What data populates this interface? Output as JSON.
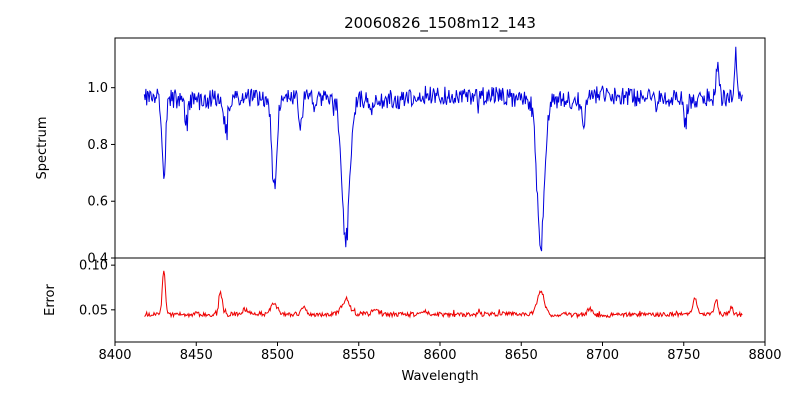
{
  "chart_data": {
    "type": "line",
    "title": "20060826_1508m12_143",
    "xlabel": "Wavelength",
    "xlim": [
      8400,
      8800
    ],
    "x_data_range": [
      8418,
      8786
    ],
    "point_step": 0.5,
    "x_tick_values": [
      8400,
      8450,
      8500,
      8550,
      8600,
      8650,
      8700,
      8750,
      8800
    ],
    "x_tick_labels": [
      "8400",
      "8450",
      "8500",
      "8550",
      "8600",
      "8650",
      "8700",
      "8750",
      "8800"
    ],
    "grid": false,
    "legend": "none",
    "subplots": [
      {
        "name": "spectrum",
        "ylabel": "Spectrum",
        "ylim": [
          0.4,
          1.175
        ],
        "ytick_values": [
          0.4,
          0.6,
          0.8,
          1.0
        ],
        "ytick_labels": [
          "0.4",
          "0.6",
          "0.8",
          "1.0"
        ],
        "line_color": "#0000dd",
        "baseline": 0.965,
        "noise_amp": 0.033,
        "absorption_lines": [
          {
            "center": 8430,
            "depth": 0.3,
            "width": 1.1
          },
          {
            "center": 8444,
            "depth": 0.08,
            "width": 1.0
          },
          {
            "center": 8468,
            "depth": 0.1,
            "width": 1.2
          },
          {
            "center": 8498,
            "depth": 0.33,
            "width": 1.6
          },
          {
            "center": 8514,
            "depth": 0.1,
            "width": 1.0
          },
          {
            "center": 8542,
            "depth": 0.52,
            "width": 2.4
          },
          {
            "center": 8662,
            "depth": 0.53,
            "width": 2.4
          },
          {
            "center": 8688,
            "depth": 0.1,
            "width": 1.2
          },
          {
            "center": 8751,
            "depth": 0.09,
            "width": 1.0
          }
        ],
        "emission_spikes": [
          {
            "center": 8771,
            "height": 0.15,
            "width": 0.8
          },
          {
            "center": 8782,
            "height": 0.17,
            "width": 0.8
          }
        ]
      },
      {
        "name": "error",
        "ylabel": "Error",
        "ylim": [
          0.014,
          0.108
        ],
        "ytick_values": [
          0.05,
          0.1
        ],
        "ytick_labels": [
          "0.05",
          "0.10"
        ],
        "line_color": "#ee0000",
        "baseline": 0.045,
        "noise_amp": 0.0025,
        "peaks": [
          {
            "center": 8430,
            "height": 0.056,
            "width": 0.9
          },
          {
            "center": 8465,
            "height": 0.027,
            "width": 1.0
          },
          {
            "center": 8480,
            "height": 0.006,
            "width": 1.5
          },
          {
            "center": 8498,
            "height": 0.013,
            "width": 2.0
          },
          {
            "center": 8516,
            "height": 0.008,
            "width": 1.5
          },
          {
            "center": 8542,
            "height": 0.017,
            "width": 2.5
          },
          {
            "center": 8560,
            "height": 0.006,
            "width": 1.5
          },
          {
            "center": 8590,
            "height": 0.005,
            "width": 2.0
          },
          {
            "center": 8662,
            "height": 0.028,
            "width": 2.2
          },
          {
            "center": 8692,
            "height": 0.007,
            "width": 1.5
          },
          {
            "center": 8757,
            "height": 0.019,
            "width": 1.2
          },
          {
            "center": 8770,
            "height": 0.016,
            "width": 1.0
          },
          {
            "center": 8779,
            "height": 0.008,
            "width": 0.8
          }
        ]
      }
    ]
  }
}
